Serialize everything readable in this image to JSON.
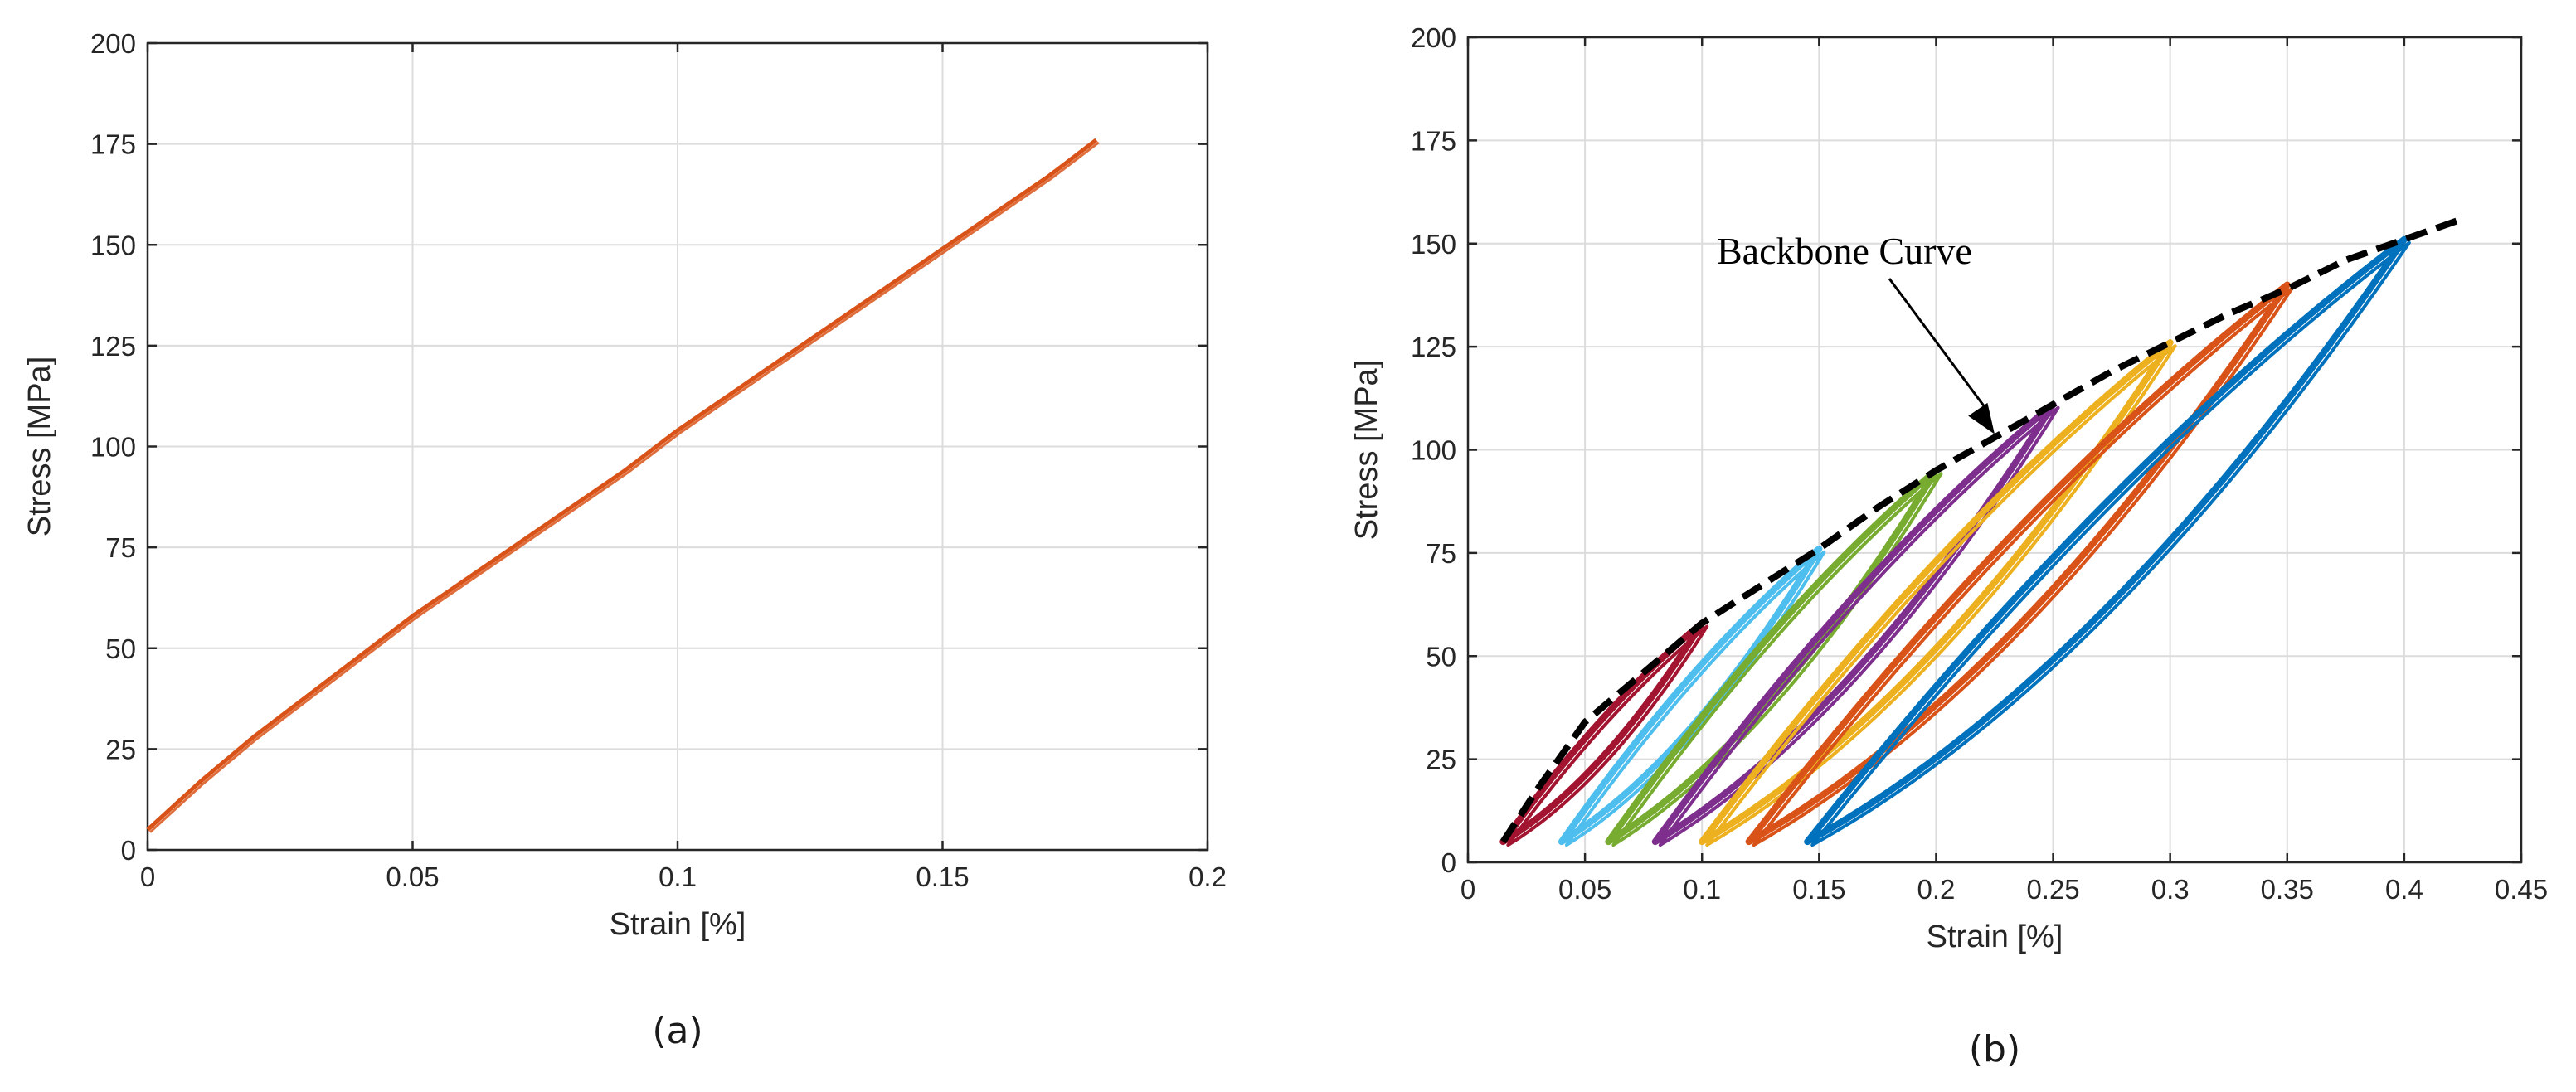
{
  "chart_data": [
    {
      "type": "line",
      "panel_label": "(a)",
      "xlabel": "Strain [%]",
      "ylabel": "Stress [MPa]",
      "xlim": [
        0,
        0.2
      ],
      "ylim": [
        0,
        200
      ],
      "xticks": [
        0,
        0.05,
        0.1,
        0.15,
        0.2
      ],
      "xtick_labels": [
        "0",
        "0.05",
        "0.1",
        "0.15",
        "0.2"
      ],
      "yticks": [
        0,
        25,
        50,
        75,
        100,
        125,
        150,
        175,
        200
      ],
      "ytick_labels": [
        "0",
        "25",
        "50",
        "75",
        "100",
        "125",
        "150",
        "175",
        "200"
      ],
      "grid": true,
      "series": [
        {
          "color": "#d95319",
          "x": [
            0,
            0.01,
            0.02,
            0.03,
            0.04,
            0.05,
            0.06,
            0.07,
            0.08,
            0.09,
            0.1,
            0.11,
            0.12,
            0.13,
            0.14,
            0.15,
            0.16,
            0.17,
            0.179
          ],
          "y": [
            5,
            17,
            28,
            38,
            48,
            58,
            67,
            76,
            85,
            94,
            104,
            113,
            122,
            131,
            140,
            149,
            158,
            167,
            176
          ]
        }
      ]
    },
    {
      "type": "line",
      "panel_label": "(b)",
      "xlabel": "Strain [%]",
      "ylabel": "Stress [MPa]",
      "xlim": [
        0,
        0.45
      ],
      "ylim": [
        0,
        200
      ],
      "xticks": [
        0,
        0.05,
        0.1,
        0.15,
        0.2,
        0.25,
        0.3,
        0.35,
        0.4,
        0.45
      ],
      "xtick_labels": [
        "0",
        "0.05",
        "0.1",
        "0.15",
        "0.2",
        "0.25",
        "0.3",
        "0.35",
        "0.4",
        "0.45"
      ],
      "yticks": [
        0,
        25,
        50,
        75,
        100,
        125,
        150,
        175,
        200
      ],
      "ytick_labels": [
        "0",
        "25",
        "50",
        "75",
        "100",
        "125",
        "150",
        "175",
        "200"
      ],
      "grid": true,
      "annotation": {
        "text": "Backbone Curve",
        "points_to": [
          0.225,
          103
        ]
      },
      "series": [
        {
          "color": "#a2142f",
          "loop": {
            "x_min": 0.015,
            "x_max": 0.1,
            "y_min": 5,
            "y_max": 58
          }
        },
        {
          "color": "#4dbeee",
          "loop": {
            "x_min": 0.04,
            "x_max": 0.15,
            "y_min": 5,
            "y_max": 76
          }
        },
        {
          "color": "#77ac30",
          "loop": {
            "x_min": 0.06,
            "x_max": 0.2,
            "y_min": 5,
            "y_max": 95
          }
        },
        {
          "color": "#7e2f8e",
          "loop": {
            "x_min": 0.08,
            "x_max": 0.25,
            "y_min": 5,
            "y_max": 111
          }
        },
        {
          "color": "#edb120",
          "loop": {
            "x_min": 0.1,
            "x_max": 0.3,
            "y_min": 5,
            "y_max": 126
          }
        },
        {
          "color": "#d95319",
          "loop": {
            "x_min": 0.12,
            "x_max": 0.35,
            "y_min": 5,
            "y_max": 140
          }
        },
        {
          "color": "#0072bd",
          "loop": {
            "x_min": 0.145,
            "x_max": 0.4,
            "y_min": 5,
            "y_max": 151
          }
        }
      ],
      "backbone": {
        "color": "#000000",
        "x": [
          0.015,
          0.03,
          0.05,
          0.075,
          0.1,
          0.125,
          0.15,
          0.175,
          0.2,
          0.225,
          0.25,
          0.275,
          0.3,
          0.325,
          0.35,
          0.375,
          0.4,
          0.425
        ],
        "y": [
          5,
          18,
          34,
          46,
          58,
          67,
          76,
          86,
          95,
          103,
          111,
          119,
          126,
          133,
          139,
          146,
          151,
          156
        ]
      }
    }
  ]
}
